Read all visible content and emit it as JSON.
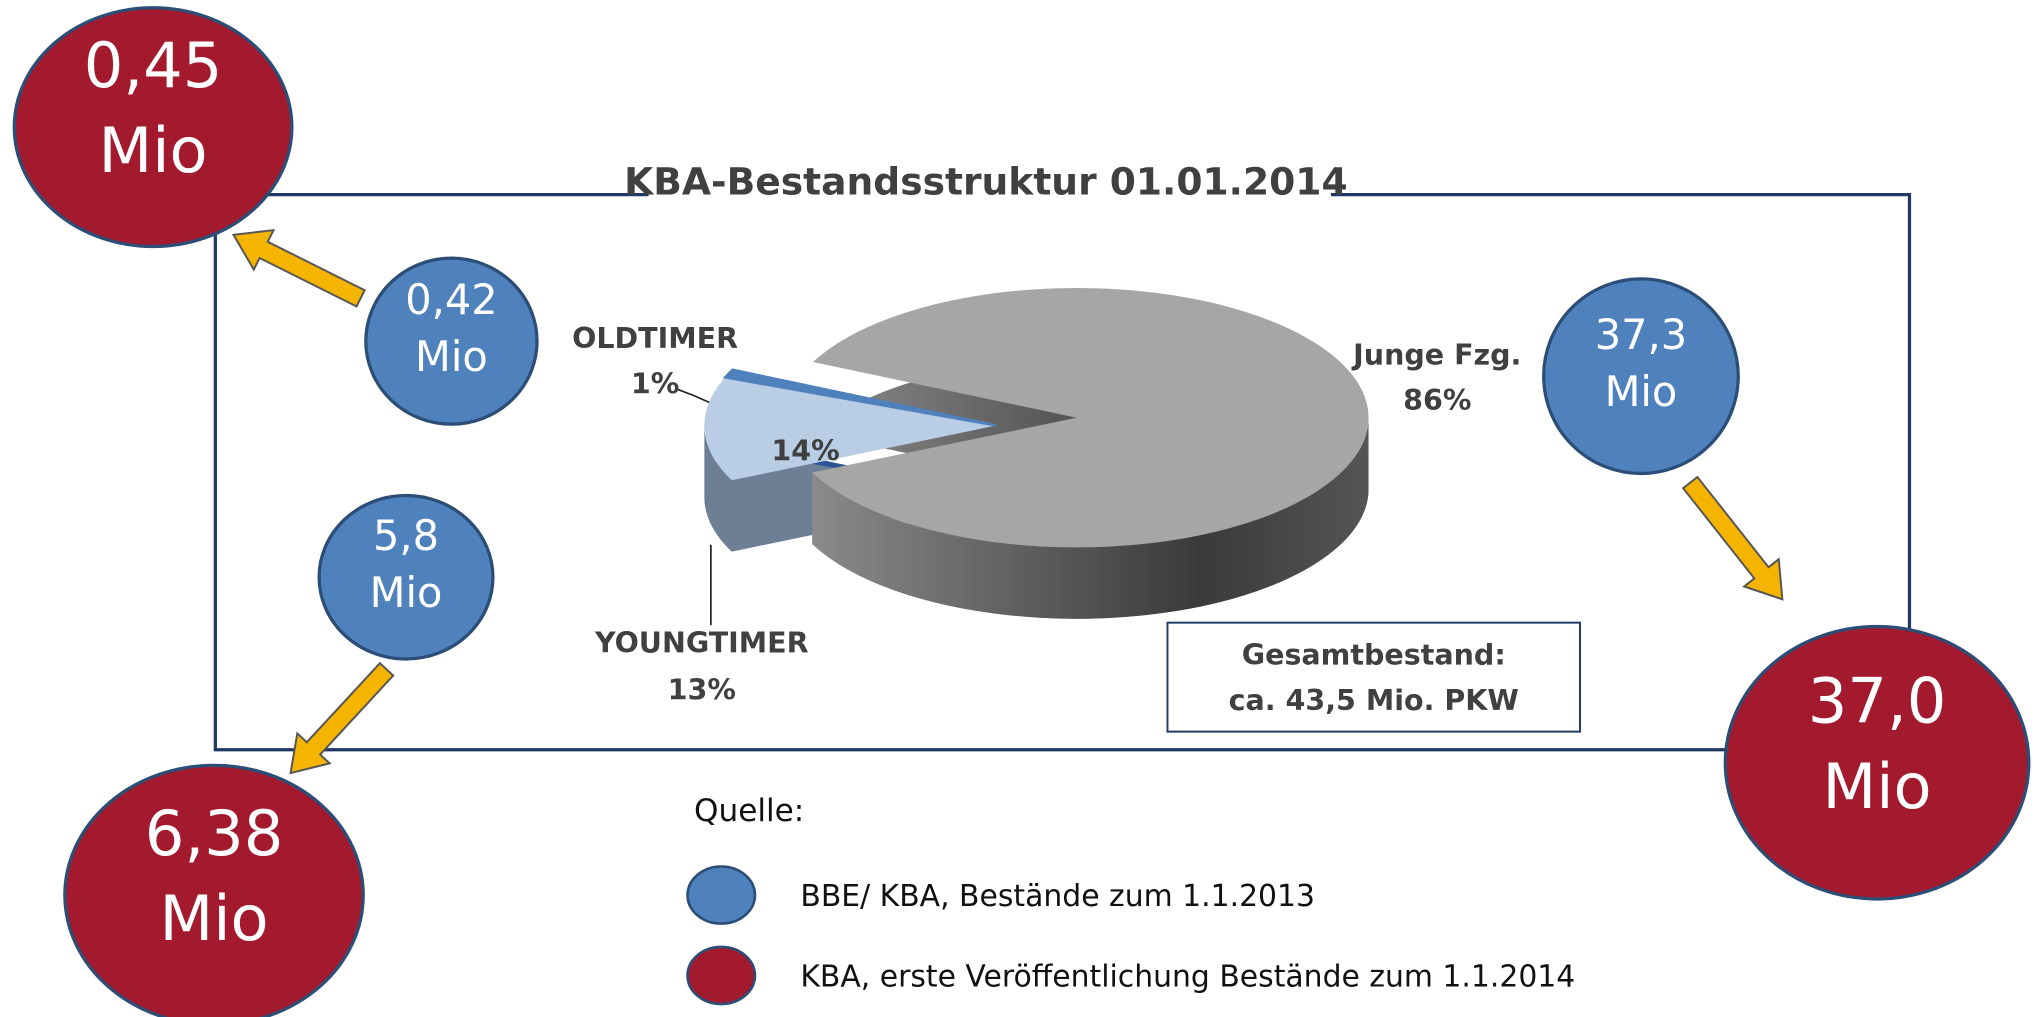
{
  "chart_data": {
    "type": "pie",
    "title": "KBA-Bestandsstruktur 01.01.2014",
    "categories": [
      "OLDTIMER",
      "YOUNGTIMER",
      "Junge Fzg."
    ],
    "values": [
      1,
      13,
      86
    ],
    "value_labels": [
      "1%",
      "13%",
      "86%"
    ],
    "colors": [
      "#4f81bd",
      "#b9cde5",
      "#a6a6a6"
    ],
    "annotations": [
      "14%"
    ],
    "note": [
      "Gesamtbestand:",
      "ca. 43,5 Mio. PKW"
    ]
  },
  "callouts": [
    {
      "text": [
        "0,42",
        "Mio"
      ],
      "color": "#4f81bd"
    },
    {
      "text": [
        "0,45",
        "Mio"
      ],
      "color": "#a31a2e"
    },
    {
      "text": [
        "5,8",
        "Mio"
      ],
      "color": "#4f81bd"
    },
    {
      "text": [
        "6,38",
        "Mio"
      ],
      "color": "#a31a2e"
    },
    {
      "text": [
        "37,3",
        "Mio"
      ],
      "color": "#4f81bd"
    },
    {
      "text": [
        "37,0",
        "Mio"
      ],
      "color": "#a31a2e"
    }
  ],
  "legend": {
    "title": "Quelle:",
    "items": [
      {
        "label": "BBE/ KBA, Bestände zum 1.1.2013",
        "color": "#4f81bd"
      },
      {
        "label": "KBA, erste Veröffentlichung Bestände zum 1.1.2014",
        "color": "#a31a2e"
      }
    ]
  }
}
